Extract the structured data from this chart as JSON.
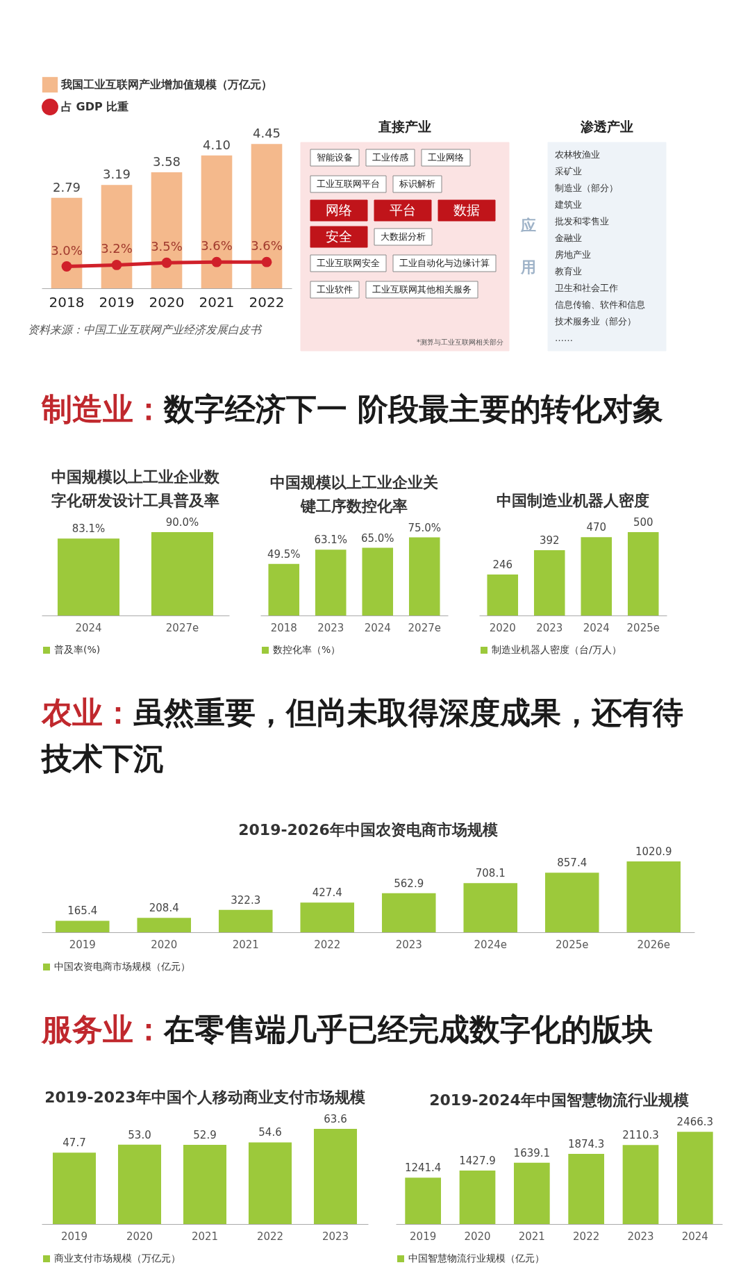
{
  "chart_data": [
    {
      "type": "bar",
      "categories": [
        "2018",
        "2019",
        "2020",
        "2021",
        "2022"
      ],
      "legend": "top left",
      "line_style": "solid",
      "marker": "circle",
      "annotations": [
        "资料来源：中国工业互联网产业经济发展白皮书"
      ],
      "series": [
        {
          "name": "我国工业互联网产业增加值规模（万亿元）",
          "color": "#f4b98c",
          "values": [
            2.79,
            3.19,
            3.58,
            4.1,
            4.45
          ],
          "value_labels": [
            "2.79",
            "3.19",
            "3.58",
            "4.10",
            "4.45"
          ]
        },
        {
          "name": "占 GDP 比重",
          "type": "line",
          "axis": "y2",
          "color": "#d0202a",
          "values": [
            3.0,
            3.2,
            3.5,
            3.6,
            3.6
          ],
          "value_labels": [
            "3.0%",
            "3.2%",
            "3.5%",
            "3.6%",
            "3.6%"
          ]
        }
      ]
    },
    {
      "type": "other",
      "title": "直接产业",
      "annotations": [
        "智能设备",
        "工业传感",
        "工业网络",
        "工业互联网平台",
        "标识解析",
        "网络",
        "平台",
        "数据",
        "安全",
        "大数据分析",
        "工业互联网安全",
        "工业自动化与边缘计算",
        "工业软件",
        "工业互联网其他相关服务",
        "*测算与工业互联网相关部分"
      ],
      "colors": [
        "#ffffff",
        "#ffffff",
        "#ffffff",
        "#ffffff",
        "#ffffff",
        "#c0141a",
        "#c0141a",
        "#c0141a",
        "#c0141a",
        "#ffffff",
        "#ffffff",
        "#ffffff",
        "#ffffff",
        "#ffffff",
        null
      ]
    },
    {
      "type": "other",
      "annotations": [
        "应用"
      ]
    },
    {
      "type": "other",
      "title": "渗透产业",
      "annotations": [
        "农林牧渔业",
        "采矿业",
        "制造业（部分）",
        "建筑业",
        "批发和零售业",
        "金融业",
        "房地产业",
        "教育业",
        "卫生和社会工作",
        "信息传输、软件和信息技术服务业（部分）",
        "……"
      ]
    },
    {
      "type": "other",
      "title": "制造业：",
      "subtitle": "数字经济下一 阶段最主要的转化对象"
    },
    {
      "type": "bar",
      "title": "中国规模以上工业企业数字化研发设计工具普及率",
      "categories": [
        "2024",
        "2027e"
      ],
      "legend": "bottom",
      "series": [
        {
          "name": "普及率(%)",
          "color": "#9cc93b",
          "values": [
            83.1,
            90.0
          ],
          "value_labels": [
            "83.1%",
            "90.0%"
          ]
        }
      ]
    },
    {
      "type": "bar",
      "title": "中国规模以上工业企业关键工序数控化率",
      "categories": [
        "2018",
        "2023",
        "2024",
        "2027e"
      ],
      "legend": "bottom",
      "series": [
        {
          "name": "数控化率（%）",
          "color": "#9cc93b",
          "values": [
            49.5,
            63.1,
            65.0,
            75.0
          ],
          "value_labels": [
            "49.5%",
            "63.1%",
            "65.0%",
            "75.0%"
          ]
        }
      ]
    },
    {
      "type": "bar",
      "title": "中国制造业机器人密度",
      "categories": [
        "2020",
        "2023",
        "2024",
        "2025e"
      ],
      "legend": "bottom",
      "series": [
        {
          "name": "制造业机器人密度（台/万人）",
          "color": "#9cc93b",
          "values": [
            246,
            392,
            470,
            500
          ],
          "value_labels": [
            "246",
            "392",
            "470",
            "500"
          ]
        }
      ]
    },
    {
      "type": "other",
      "title": "农业：",
      "subtitle": "虽然重要，但尚未取得深度成果，还有待技术下沉"
    },
    {
      "type": "bar",
      "title": "2019-2026年中国农资电商市场规模",
      "categories": [
        "2019",
        "2020",
        "2021",
        "2022",
        "2023",
        "2024e",
        "2025e",
        "2026e"
      ],
      "legend": "bottom",
      "series": [
        {
          "name": "中国农资电商市场规模（亿元）",
          "color": "#9cc93b",
          "values": [
            165.4,
            208.4,
            322.3,
            427.4,
            562.9,
            708.1,
            857.4,
            1020.9
          ],
          "value_labels": [
            "165.4",
            "208.4",
            "322.3",
            "427.4",
            "562.9",
            "708.1",
            "857.4",
            "1020.9"
          ]
        }
      ]
    },
    {
      "type": "other",
      "title": "服务业：",
      "subtitle": "在零售端几乎已经完成数字化的版块"
    },
    {
      "type": "bar",
      "title": "2019-2023年中国个人移动商业支付市场规模",
      "categories": [
        "2019",
        "2020",
        "2021",
        "2022",
        "2023"
      ],
      "legend": "bottom",
      "series": [
        {
          "name": "商业支付市场规模（万亿元）",
          "color": "#9cc93b",
          "values": [
            47.7,
            53.0,
            52.9,
            54.6,
            63.6
          ],
          "value_labels": [
            "47.7",
            "53.0",
            "52.9",
            "54.6",
            "63.6"
          ]
        }
      ]
    },
    {
      "type": "bar",
      "title": "2019-2024年中国智慧物流行业规模",
      "categories": [
        "2019",
        "2020",
        "2021",
        "2022",
        "2023",
        "2024"
      ],
      "legend": "bottom",
      "series": [
        {
          "name": "中国智慧物流行业规模（亿元）",
          "color": "#9cc93b",
          "values": [
            1241.4,
            1427.9,
            1639.1,
            1874.3,
            2110.3,
            2466.3
          ],
          "value_labels": [
            "1241.4",
            "1427.9",
            "1639.1",
            "1874.3",
            "2110.3",
            "2466.3"
          ]
        }
      ]
    }
  ]
}
